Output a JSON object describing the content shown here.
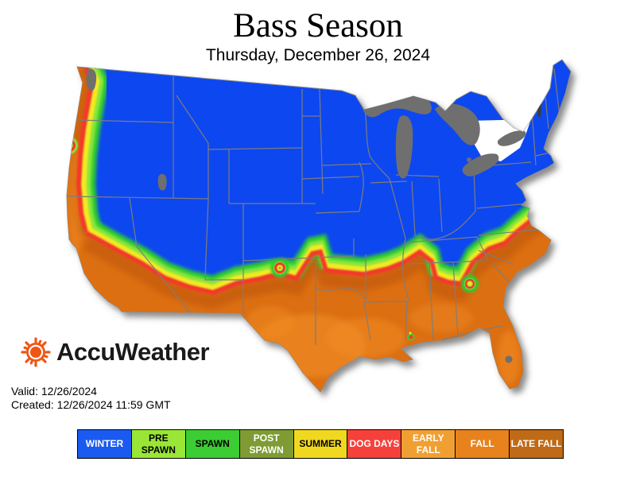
{
  "header": {
    "title": "Bass Season",
    "subtitle": "Thursday, December 26, 2024"
  },
  "branding": {
    "name": "AccuWeather",
    "sun_color": "#f05514",
    "text_color": "#1a1a1a"
  },
  "meta": {
    "valid": "Valid: 12/26/2024",
    "created": "Created: 12/26/2024 11:59 GMT"
  },
  "legend": {
    "items": [
      {
        "id": "winter",
        "label": "WINTER",
        "color": "#1a5af0",
        "text_color": "#ffffff"
      },
      {
        "id": "pre-spawn",
        "label": "PRE SPAWN",
        "color": "#99e636",
        "text_color": "#000000"
      },
      {
        "id": "spawn",
        "label": "SPAWN",
        "color": "#3ccc33",
        "text_color": "#000000"
      },
      {
        "id": "post-spawn",
        "label": "POST SPAWN",
        "color": "#7e9c33",
        "text_color": "#ffffff"
      },
      {
        "id": "summer",
        "label": "SUMMER",
        "color": "#f0d820",
        "text_color": "#000000"
      },
      {
        "id": "dog-days",
        "label": "DOG DAYS",
        "color": "#f5413a",
        "text_color": "#ffffff"
      },
      {
        "id": "early-fall",
        "label": "EARLY FALL",
        "color": "#f0a032",
        "text_color": "#ffffff"
      },
      {
        "id": "fall",
        "label": "FALL",
        "color": "#e8821c",
        "text_color": "#ffffff"
      },
      {
        "id": "late-fall",
        "label": "LATE FALL",
        "color": "#bf6a16",
        "text_color": "#ffffff"
      }
    ]
  },
  "map": {
    "colors": {
      "winter_zone": "#0a46f0",
      "fall_zone": "#dc6f12",
      "late_fall_edge": "#c85d0e",
      "fall_highlight": "#f39026",
      "spawn_band": "#2fcc2f",
      "pre_spawn_band": "#8ce63c",
      "summer_band": "#f2ea20",
      "dog_days_line": "#f5392b",
      "water": "#6f6f6f",
      "state_border": "#7d7d7d",
      "coast_line": "#8a8a8a",
      "shadow": "#4f4f4f"
    }
  }
}
